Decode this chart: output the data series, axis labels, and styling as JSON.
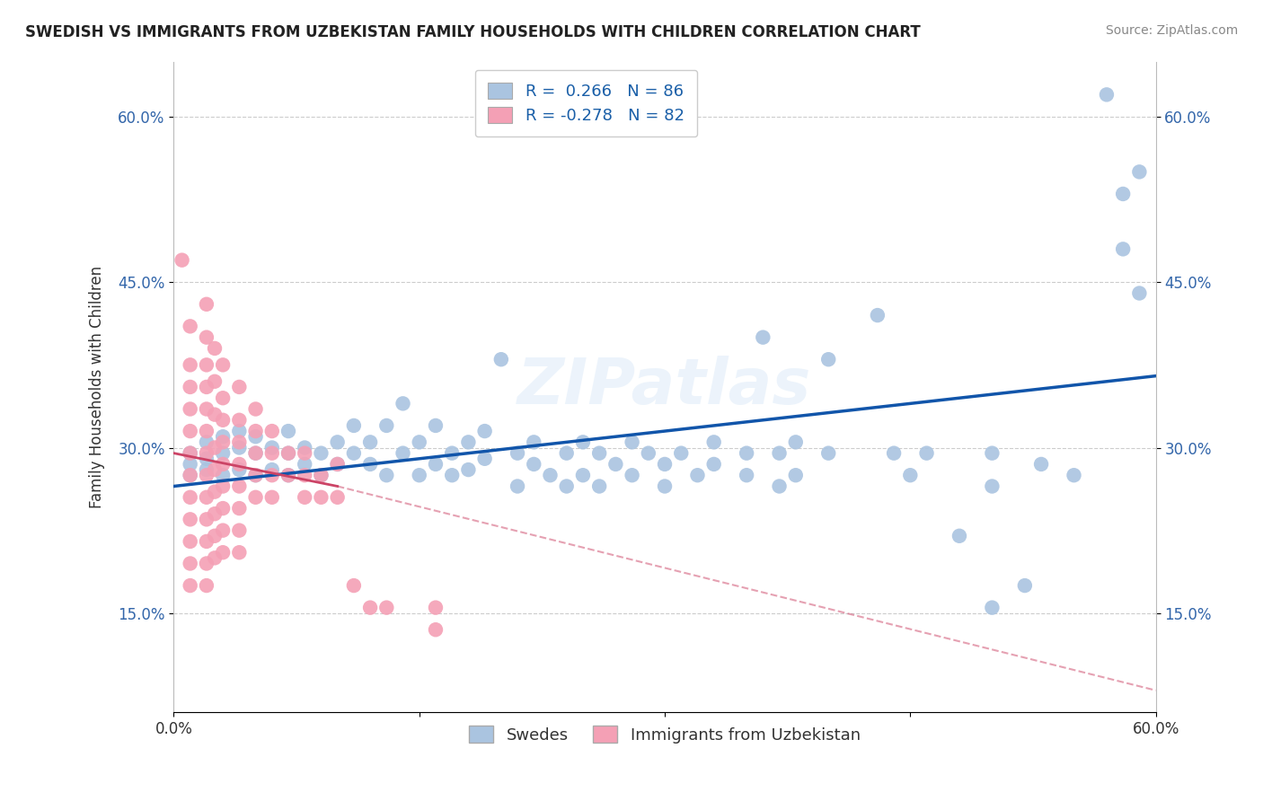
{
  "title": "SWEDISH VS IMMIGRANTS FROM UZBEKISTAN FAMILY HOUSEHOLDS WITH CHILDREN CORRELATION CHART",
  "source": "Source: ZipAtlas.com",
  "ylabel": "Family Households with Children",
  "xmin": 0.0,
  "xmax": 0.6,
  "ymin": 0.06,
  "ymax": 0.65,
  "yticks": [
    0.15,
    0.3,
    0.45,
    0.6
  ],
  "ytick_labels": [
    "15.0%",
    "30.0%",
    "45.0%",
    "60.0%"
  ],
  "xticks": [
    0.0,
    0.6
  ],
  "xtick_labels": [
    "0.0%",
    "60.0%"
  ],
  "legend_bottom": [
    "Swedes",
    "Immigrants from Uzbekistan"
  ],
  "r_blue": 0.266,
  "n_blue": 86,
  "r_pink": -0.278,
  "n_pink": 82,
  "blue_color": "#aac4e0",
  "pink_color": "#f4a0b5",
  "blue_line_color": "#1155aa",
  "pink_line_color": "#cc4466",
  "blue_scatter": [
    [
      0.01,
      0.285
    ],
    [
      0.01,
      0.275
    ],
    [
      0.01,
      0.295
    ],
    [
      0.02,
      0.28
    ],
    [
      0.02,
      0.29
    ],
    [
      0.02,
      0.305
    ],
    [
      0.03,
      0.275
    ],
    [
      0.03,
      0.295
    ],
    [
      0.03,
      0.31
    ],
    [
      0.04,
      0.28
    ],
    [
      0.04,
      0.3
    ],
    [
      0.04,
      0.315
    ],
    [
      0.05,
      0.275
    ],
    [
      0.05,
      0.295
    ],
    [
      0.05,
      0.31
    ],
    [
      0.06,
      0.28
    ],
    [
      0.06,
      0.3
    ],
    [
      0.07,
      0.275
    ],
    [
      0.07,
      0.295
    ],
    [
      0.07,
      0.315
    ],
    [
      0.08,
      0.285
    ],
    [
      0.08,
      0.3
    ],
    [
      0.09,
      0.275
    ],
    [
      0.09,
      0.295
    ],
    [
      0.1,
      0.285
    ],
    [
      0.1,
      0.305
    ],
    [
      0.11,
      0.32
    ],
    [
      0.11,
      0.295
    ],
    [
      0.12,
      0.285
    ],
    [
      0.12,
      0.305
    ],
    [
      0.13,
      0.275
    ],
    [
      0.13,
      0.32
    ],
    [
      0.14,
      0.295
    ],
    [
      0.14,
      0.34
    ],
    [
      0.15,
      0.305
    ],
    [
      0.15,
      0.275
    ],
    [
      0.16,
      0.285
    ],
    [
      0.16,
      0.32
    ],
    [
      0.17,
      0.295
    ],
    [
      0.17,
      0.275
    ],
    [
      0.18,
      0.305
    ],
    [
      0.18,
      0.28
    ],
    [
      0.19,
      0.315
    ],
    [
      0.19,
      0.29
    ],
    [
      0.2,
      0.38
    ],
    [
      0.21,
      0.295
    ],
    [
      0.21,
      0.265
    ],
    [
      0.22,
      0.305
    ],
    [
      0.22,
      0.285
    ],
    [
      0.23,
      0.275
    ],
    [
      0.24,
      0.295
    ],
    [
      0.24,
      0.265
    ],
    [
      0.25,
      0.305
    ],
    [
      0.25,
      0.275
    ],
    [
      0.26,
      0.295
    ],
    [
      0.26,
      0.265
    ],
    [
      0.27,
      0.285
    ],
    [
      0.28,
      0.305
    ],
    [
      0.28,
      0.275
    ],
    [
      0.29,
      0.295
    ],
    [
      0.3,
      0.285
    ],
    [
      0.3,
      0.265
    ],
    [
      0.31,
      0.295
    ],
    [
      0.32,
      0.275
    ],
    [
      0.33,
      0.285
    ],
    [
      0.33,
      0.305
    ],
    [
      0.35,
      0.295
    ],
    [
      0.35,
      0.275
    ],
    [
      0.36,
      0.4
    ],
    [
      0.37,
      0.295
    ],
    [
      0.37,
      0.265
    ],
    [
      0.38,
      0.275
    ],
    [
      0.38,
      0.305
    ],
    [
      0.4,
      0.38
    ],
    [
      0.4,
      0.295
    ],
    [
      0.43,
      0.42
    ],
    [
      0.44,
      0.295
    ],
    [
      0.45,
      0.275
    ],
    [
      0.46,
      0.295
    ],
    [
      0.48,
      0.22
    ],
    [
      0.5,
      0.295
    ],
    [
      0.5,
      0.265
    ],
    [
      0.5,
      0.155
    ],
    [
      0.52,
      0.175
    ],
    [
      0.53,
      0.285
    ],
    [
      0.55,
      0.275
    ],
    [
      0.57,
      0.62
    ],
    [
      0.58,
      0.53
    ],
    [
      0.58,
      0.48
    ],
    [
      0.59,
      0.55
    ],
    [
      0.59,
      0.44
    ]
  ],
  "pink_scatter": [
    [
      0.005,
      0.47
    ],
    [
      0.01,
      0.41
    ],
    [
      0.01,
      0.375
    ],
    [
      0.01,
      0.355
    ],
    [
      0.01,
      0.335
    ],
    [
      0.01,
      0.315
    ],
    [
      0.01,
      0.295
    ],
    [
      0.01,
      0.275
    ],
    [
      0.01,
      0.255
    ],
    [
      0.01,
      0.235
    ],
    [
      0.01,
      0.215
    ],
    [
      0.01,
      0.195
    ],
    [
      0.01,
      0.175
    ],
    [
      0.02,
      0.43
    ],
    [
      0.02,
      0.4
    ],
    [
      0.02,
      0.375
    ],
    [
      0.02,
      0.355
    ],
    [
      0.02,
      0.335
    ],
    [
      0.02,
      0.315
    ],
    [
      0.02,
      0.295
    ],
    [
      0.02,
      0.275
    ],
    [
      0.02,
      0.255
    ],
    [
      0.02,
      0.235
    ],
    [
      0.02,
      0.215
    ],
    [
      0.02,
      0.195
    ],
    [
      0.02,
      0.175
    ],
    [
      0.025,
      0.39
    ],
    [
      0.025,
      0.36
    ],
    [
      0.025,
      0.33
    ],
    [
      0.025,
      0.3
    ],
    [
      0.025,
      0.28
    ],
    [
      0.025,
      0.26
    ],
    [
      0.025,
      0.24
    ],
    [
      0.025,
      0.22
    ],
    [
      0.025,
      0.2
    ],
    [
      0.03,
      0.375
    ],
    [
      0.03,
      0.345
    ],
    [
      0.03,
      0.325
    ],
    [
      0.03,
      0.305
    ],
    [
      0.03,
      0.285
    ],
    [
      0.03,
      0.265
    ],
    [
      0.03,
      0.245
    ],
    [
      0.03,
      0.225
    ],
    [
      0.03,
      0.205
    ],
    [
      0.04,
      0.355
    ],
    [
      0.04,
      0.325
    ],
    [
      0.04,
      0.305
    ],
    [
      0.04,
      0.285
    ],
    [
      0.04,
      0.265
    ],
    [
      0.04,
      0.245
    ],
    [
      0.04,
      0.225
    ],
    [
      0.04,
      0.205
    ],
    [
      0.05,
      0.335
    ],
    [
      0.05,
      0.315
    ],
    [
      0.05,
      0.295
    ],
    [
      0.05,
      0.275
    ],
    [
      0.05,
      0.255
    ],
    [
      0.06,
      0.315
    ],
    [
      0.06,
      0.295
    ],
    [
      0.06,
      0.275
    ],
    [
      0.06,
      0.255
    ],
    [
      0.07,
      0.295
    ],
    [
      0.07,
      0.275
    ],
    [
      0.08,
      0.295
    ],
    [
      0.08,
      0.275
    ],
    [
      0.08,
      0.255
    ],
    [
      0.09,
      0.275
    ],
    [
      0.09,
      0.255
    ],
    [
      0.1,
      0.285
    ],
    [
      0.1,
      0.255
    ],
    [
      0.11,
      0.175
    ],
    [
      0.12,
      0.155
    ],
    [
      0.13,
      0.155
    ],
    [
      0.16,
      0.155
    ],
    [
      0.16,
      0.135
    ]
  ],
  "blue_trendline": [
    [
      0.0,
      0.265
    ],
    [
      0.6,
      0.365
    ]
  ],
  "pink_trendline_solid": [
    [
      0.0,
      0.295
    ],
    [
      0.1,
      0.265
    ]
  ],
  "pink_trendline_dash": [
    [
      0.1,
      0.265
    ],
    [
      0.6,
      0.08
    ]
  ]
}
